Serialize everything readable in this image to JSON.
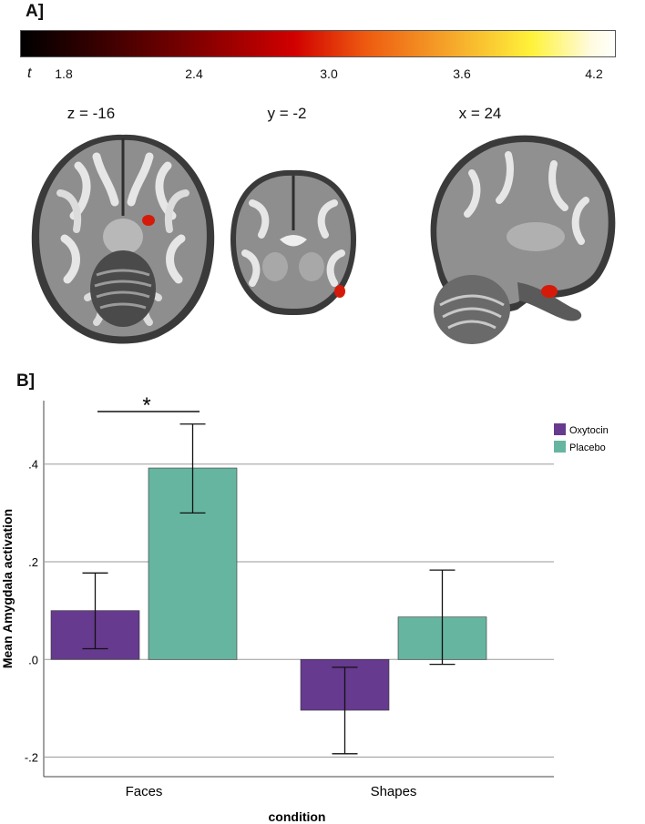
{
  "panel_a": {
    "label": "A]",
    "colorbar": {
      "symbol": "t",
      "ticks": [
        "1.8",
        "2.4",
        "3.0",
        "3.6",
        "4.2"
      ]
    },
    "slices": [
      "z = -16",
      "y = -2",
      "x = 24"
    ]
  },
  "panel_b": {
    "label": "B]"
  },
  "chart_data": {
    "type": "bar",
    "xlabel": "condition",
    "ylabel": "Mean Amygdala activation",
    "categories": [
      "Faces",
      "Shapes"
    ],
    "series": [
      {
        "name": "Oxytocin",
        "color": "#663a8f",
        "values": [
          0.1,
          -0.104
        ],
        "error_low": [
          0.022,
          -0.193
        ],
        "error_high": [
          0.177,
          -0.016
        ]
      },
      {
        "name": "Placebo",
        "color": "#66b5a0",
        "values": [
          0.392,
          0.087
        ],
        "error_low": [
          0.3,
          -0.01
        ],
        "error_high": [
          0.482,
          0.183
        ]
      }
    ],
    "ylim": [
      -0.24,
      0.53
    ],
    "yticks": [
      -0.2,
      0.0,
      0.2,
      0.4
    ],
    "ytick_labels": [
      "-.2",
      ".0",
      ".2",
      ".4"
    ],
    "grid": true,
    "legend_position": "top-right",
    "annotation": {
      "text": "*",
      "meaning": "significant difference",
      "category": "Faces"
    }
  }
}
